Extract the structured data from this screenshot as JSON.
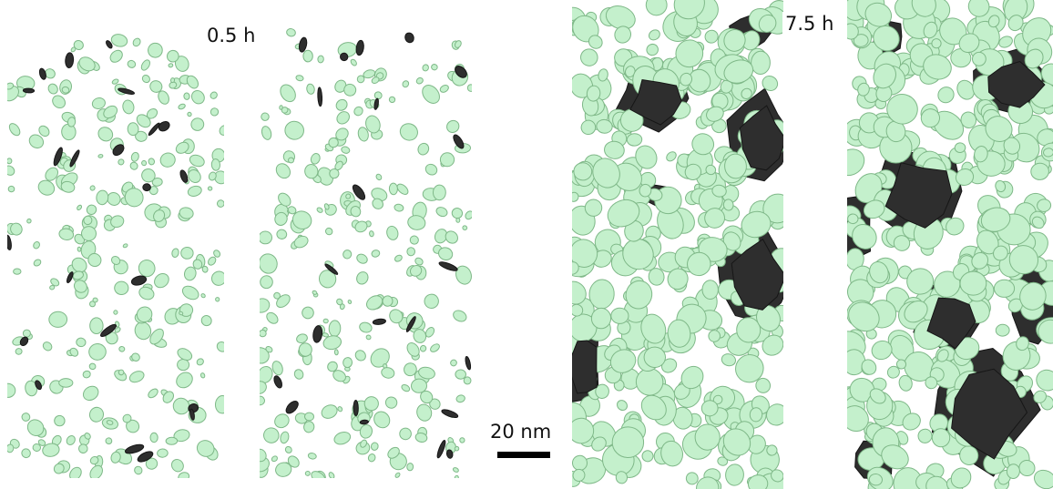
{
  "figure": {
    "labels": {
      "early": "0.5 h",
      "late": "7.5 h"
    },
    "scale_bar": {
      "label": "20 nm"
    },
    "colors": {
      "background": "#ffffff",
      "particle_fill": "#c4f0cc",
      "particle_stroke": "#7fb888",
      "dark_phase": "#2e2e2e",
      "dark_phase_stroke": "#161616"
    }
  }
}
